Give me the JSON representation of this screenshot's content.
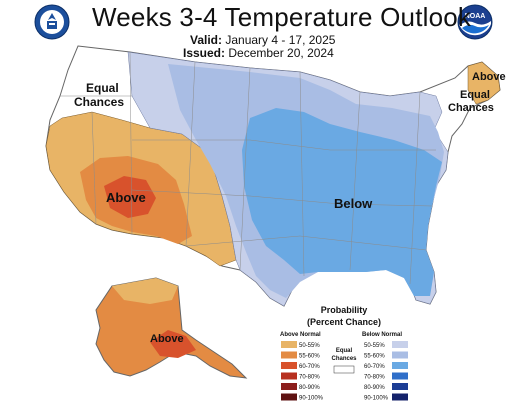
{
  "header": {
    "title": "Weeks 3-4 Temperature Outlook",
    "valid_label": "Valid:",
    "valid_value": "January 4 - 17, 2025",
    "issued_label": "Issued:",
    "issued_value": "December 20, 2024"
  },
  "logos": {
    "left": "doc-seal-icon",
    "right": "noaa-logo-icon",
    "right_text": "NOAA"
  },
  "map_labels": {
    "equal_west_line1": "Equal",
    "equal_west_line2": "Chances",
    "above_west": "Above",
    "below_central": "Below",
    "above_northeast": "Above",
    "equal_northeast_line1": "Equal",
    "equal_northeast_line2": "Chances",
    "above_alaska": "Above"
  },
  "legend": {
    "title_line1": "Probability",
    "title_line2": "(Percent Chance)",
    "above_header": "Above Normal",
    "below_header": "Below Normal",
    "equal_line1": "Equal",
    "equal_line2": "Chances",
    "levels": [
      "50-55%",
      "55-60%",
      "60-70%",
      "70-80%",
      "80-90%",
      "90-100%"
    ],
    "above_colors": [
      "#e8b466",
      "#e38b43",
      "#d8522c",
      "#b7301f",
      "#8c1e1c",
      "#5e1212"
    ],
    "below_colors": [
      "#c7d0ea",
      "#a9bde4",
      "#6aa9e3",
      "#2f6fc9",
      "#1b3d95",
      "#14226a"
    ],
    "equal_color": "#ffffff"
  }
}
